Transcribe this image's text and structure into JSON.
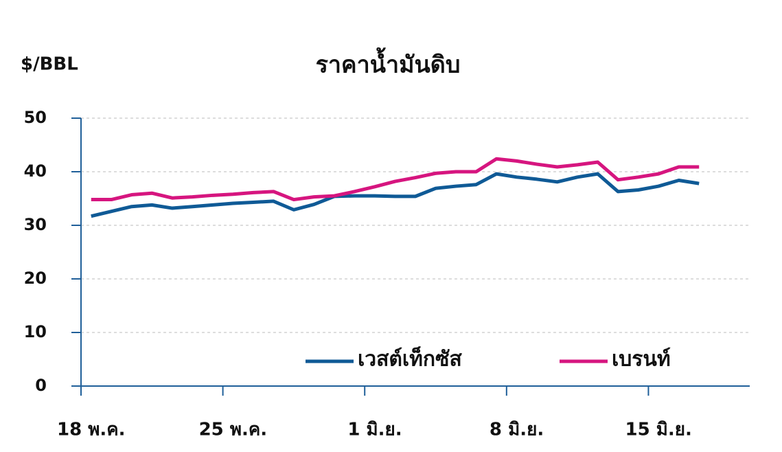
{
  "chart_data": {
    "type": "line",
    "title": "ราคาน้ำมันดิบ",
    "y_label": "$/BBL",
    "categories": [
      "18 พ.ค.",
      null,
      null,
      null,
      null,
      null,
      null,
      "25 พ.ค.",
      null,
      null,
      null,
      null,
      null,
      null,
      "1 มิ.ย.",
      null,
      null,
      null,
      null,
      null,
      null,
      "8 มิ.ย.",
      null,
      null,
      null,
      null,
      null,
      null,
      "15 มิ.ย.",
      null,
      null
    ],
    "series": [
      {
        "name": "เวสต์เท็กซัส",
        "color": "#0f5a96",
        "values": [
          31.7,
          32.6,
          33.5,
          33.8,
          33.2,
          33.5,
          33.8,
          34.1,
          34.3,
          34.5,
          32.9,
          33.9,
          35.4,
          35.5,
          35.5,
          35.4,
          35.4,
          36.9,
          37.3,
          37.6,
          39.6,
          39.0,
          38.6,
          38.1,
          39.0,
          39.6,
          36.3,
          36.6,
          37.3,
          38.4,
          37.8
        ]
      },
      {
        "name": "เบรนท์",
        "color": "#d6157f",
        "values": [
          34.8,
          34.8,
          35.7,
          36.0,
          35.1,
          35.3,
          35.6,
          35.8,
          36.1,
          36.3,
          34.8,
          35.3,
          35.5,
          36.3,
          37.2,
          38.2,
          38.9,
          39.7,
          40.0,
          40.0,
          42.4,
          42.0,
          41.4,
          40.9,
          41.3,
          41.8,
          38.5,
          39.0,
          39.6,
          40.9,
          40.9
        ]
      }
    ],
    "ylim": [
      0,
      50
    ],
    "yticks": [
      0,
      10,
      20,
      30,
      40,
      50
    ],
    "grid": true,
    "legend": "lower right"
  }
}
